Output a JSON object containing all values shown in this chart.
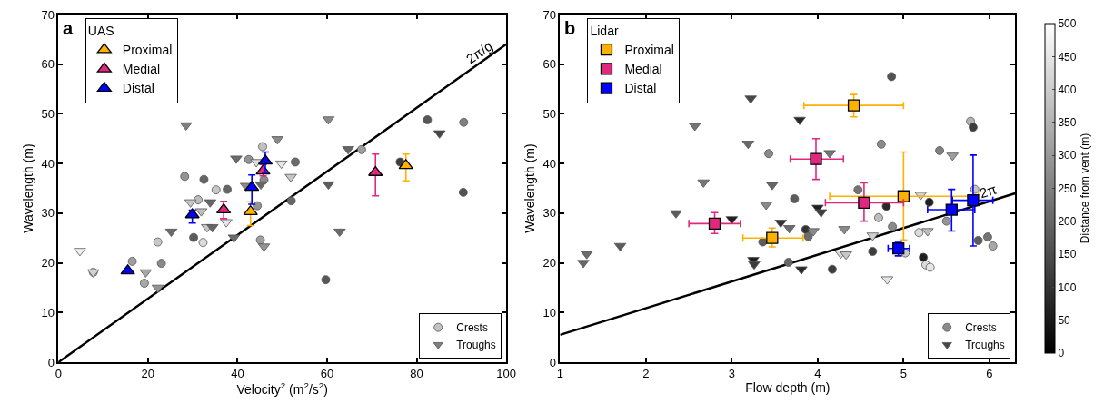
{
  "chart_data": [
    {
      "type": "scatter",
      "title": "a",
      "xlabel": "Velocity$^{2}$ (m$^{2}$/s$^{2}$)",
      "ylabel": "Wavelength (m)",
      "legend_title": "UAS",
      "xlim": [
        0,
        100
      ],
      "xticks": [
        0,
        20,
        40,
        60,
        80,
        100
      ],
      "ylim": [
        0,
        70
      ],
      "yticks": [
        0,
        10,
        20,
        30,
        40,
        50,
        60,
        70
      ],
      "legend": [
        "top left",
        "bottom right"
      ],
      "annotations": [
        "2π/g"
      ],
      "series": [
        {
          "type": "line",
          "color": "#000000",
          "line_style": "solid",
          "marker": "none",
          "x": [
            0,
            100
          ],
          "values": [
            0,
            64
          ]
        },
        {
          "name": "Crests",
          "marker": "circle",
          "x": [
            45.6,
            42.5,
            28.2,
            32.5,
            35.2,
            37.7,
            31.2,
            44.4,
            30.2,
            32.3,
            22.2,
            45.1,
            16.5,
            23.0,
            19.2,
            7.8,
            82.4,
            90.5,
            67.7,
            52.9,
            76.3,
            52.0,
            90.4,
            59.7,
            45.9
          ],
          "values": [
            43.4,
            40.8,
            37.4,
            36.8,
            34.7,
            34.8,
            32.7,
            31.5,
            25.1,
            24.1,
            24.2,
            24.6,
            20.3,
            19.9,
            15.9,
            18.1,
            48.8,
            48.3,
            42.8,
            40.3,
            40.3,
            32.5,
            34.2,
            16.6,
            36.7
          ],
          "colors": [
            "#c2c2c2",
            "#949494",
            "#949494",
            "#666666",
            "#c7c7c7",
            "#666666",
            "#bdbdbd",
            "#949494",
            "#5c5c5c",
            "#dbdbdb",
            "#c7c7c7",
            "#9e9e9e",
            "#9e9e9e",
            "#8a8a8a",
            "#a8a8a8",
            "#c7c7c7",
            "#575757",
            "#808080",
            "#9e9e9e",
            "#6b6b6b",
            "#3d3d3d",
            "#666666",
            "#525252",
            "#575757",
            "#8a8a8a"
          ]
        },
        {
          "name": "Troughs",
          "marker": "triangle-down",
          "x": [
            28.5,
            48.9,
            39.7,
            44.2,
            49.8,
            45.2,
            41.9,
            33.9,
            29.5,
            31.9,
            33.2,
            34.4,
            37.5,
            25.2,
            39.2,
            45.9,
            4.8,
            19.5,
            7.8,
            22.2,
            60.3,
            85.1,
            64.7,
            51.9,
            60.3,
            62.8
          ],
          "values": [
            47.7,
            44.9,
            41.0,
            40.3,
            40.0,
            35.8,
            35.5,
            32.2,
            32.2,
            30.4,
            27.2,
            27.2,
            28.2,
            26.3,
            25.1,
            23.3,
            22.4,
            18.1,
            18.1,
            15.0,
            48.9,
            46.1,
            42.9,
            37.3,
            35.8,
            26.3
          ],
          "colors": [
            "#808080",
            "#8a8a8a",
            "#6b6b6b",
            "#dbdbdb",
            "#e6e6e6",
            "#666666",
            "#8a8a8a",
            "#666666",
            "#c7c7c7",
            "#bdbdbd",
            "#c7c7c7",
            "#666666",
            "#e6e6e6",
            "#6b6b6b",
            "#6b6b6b",
            "#949494",
            "#f0f0f0",
            "#a8a8a8",
            "#d1d1d1",
            "#949494",
            "#8a8a8a",
            "#474747",
            "#666666",
            "#c7c7c7",
            "#5c5c5c",
            "#6b6b6b"
          ]
        },
        {
          "name": "Proximal",
          "color": "#ffb000",
          "marker": "triangle",
          "x": [
            42.9,
            77.6
          ],
          "values": [
            30.3,
            39.6
          ],
          "errors": [
            [
              27.5,
              32.3
            ],
            [
              36.5,
              41.9
            ]
          ]
        },
        {
          "name": "Medial",
          "color": "#e0297e",
          "marker": "triangle",
          "x": [
            36.9,
            45.7,
            70.8
          ],
          "values": [
            30.7,
            38.5,
            38.2
          ],
          "errors": [
            [
              28.9,
              32.4
            ],
            [
              37.5,
              39.8
            ],
            [
              33.5,
              41.9
            ]
          ]
        },
        {
          "name": "Distal",
          "color": "#0000ff",
          "marker": "triangle",
          "x": [
            15.5,
            29.9,
            43.2,
            46.2
          ],
          "values": [
            18.4,
            29.7,
            35.2,
            40.5
          ],
          "errors": [
            null,
            [
              28.0,
              30.6
            ],
            [
              31.8,
              37.7
            ],
            [
              38.2,
              42.3
            ]
          ]
        }
      ]
    },
    {
      "type": "scatter",
      "title": "b",
      "xlabel": "Flow depth (m)",
      "ylabel": "Wavelength (m)",
      "legend_title": "Lidar",
      "xlim": [
        1,
        6.3
      ],
      "xticks": [
        1,
        2,
        3,
        4,
        5,
        6
      ],
      "ylim": [
        0,
        70
      ],
      "yticks": [
        0,
        10,
        20,
        30,
        40,
        50,
        60,
        70
      ],
      "legend": [
        "top left",
        "bottom right"
      ],
      "clim": [
        0,
        500
      ],
      "cticks": [
        0,
        50,
        100,
        150,
        200,
        250,
        300,
        350,
        400,
        450,
        500
      ],
      "clabel": "Distance from vent (m)",
      "annotations": [
        "2π"
      ],
      "series": [
        {
          "type": "line",
          "color": "#000000",
          "line_style": "solid",
          "marker": "none",
          "x": [
            1,
            6.3
          ],
          "values": [
            5.5,
            34
          ]
        },
        {
          "name": "Crests",
          "marker": "circle",
          "x": [
            3.43,
            3.36,
            4.86,
            5.78,
            5.81,
            4.74,
            5.42,
            5.83,
            4.47,
            3.73,
            5.3,
            4.8,
            4.71,
            5.5,
            4.87,
            3.86,
            3.89,
            5.18,
            5.87,
            5.98,
            6.04,
            5.02,
            4.64,
            3.66,
            5.23,
            5.26,
            5.31,
            4.17
          ],
          "values": [
            42.0,
            24.2,
            57.5,
            48.5,
            47.3,
            43.9,
            42.6,
            34.8,
            34.7,
            32.9,
            32.2,
            31.4,
            29.1,
            28.4,
            27.3,
            26.7,
            25.3,
            26.1,
            24.5,
            25.2,
            23.4,
            22.0,
            22.3,
            20.1,
            21.1,
            19.6,
            19.1,
            18.7
          ],
          "colors": [
            "#8a8a8a",
            "#5c5c5c",
            "#525252",
            "#b3b3b3",
            "#3d3d3d",
            "#8a8a8a",
            "#808080",
            "#c7c7c7",
            "#757575",
            "#5c5c5c",
            "#1f1f1f",
            "#292929",
            "#bdbdbd",
            "#949494",
            "#8a8a8a",
            "#333333",
            "#6b6b6b",
            "#dbdbdb",
            "#5c5c5c",
            "#757575",
            "#a8a8a8",
            "#c7c7c7",
            "#3d3d3d",
            "#666666",
            "#1f1f1f",
            "#dbdbdb",
            "#e6e6e6",
            "#3d3d3d"
          ]
        },
        {
          "name": "Troughs",
          "marker": "triangle-down",
          "x": [
            3.22,
            2.57,
            3.19,
            2.67,
            3.47,
            3.4,
            2.35,
            3.0,
            3.57,
            1.7,
            1.31,
            1.27,
            3.25,
            3.26,
            3.79,
            4.14,
            5.57,
            5.2,
            4.0,
            4.04,
            3.67,
            3.95,
            4.31,
            4.64,
            5.28,
            4.27,
            4.33,
            3.81,
            4.81
          ],
          "values": [
            53.1,
            47.6,
            44.0,
            36.2,
            35.7,
            31.7,
            30.0,
            28.8,
            28.1,
            23.4,
            21.8,
            20.0,
            20.6,
            19.7,
            48.8,
            42.1,
            41.6,
            33.7,
            31.1,
            30.2,
            27.0,
            26.4,
            26.8,
            25.5,
            26.4,
            21.9,
            21.7,
            18.7,
            16.7
          ],
          "colors": [
            "#474747",
            "#757575",
            "#6b6b6b",
            "#757575",
            "#666666",
            "#8a8a8a",
            "#5c5c5c",
            "#1f1f1f",
            "#333333",
            "#5c5c5c",
            "#6b6b6b",
            "#666666",
            "#1f1f1f",
            "#3d3d3d",
            "#292929",
            "#757575",
            "#9e9e9e",
            "#d1d1d1",
            "#1f1f1f",
            "#3d3d3d",
            "#6b6b6b",
            "#8a8a8a",
            "#8a8a8a",
            "#d1d1d1",
            "#bdbdbd",
            "#dbdbdb",
            "#c7c7c7",
            "#292929",
            "#e6e6e6"
          ]
        },
        {
          "name": "Proximal",
          "color": "#ffb000",
          "marker": "square",
          "x": [
            4.42,
            5.0,
            3.47
          ],
          "values": [
            51.7,
            33.4,
            25.0
          ],
          "errors": [
            [
              49.4,
              53.9
            ],
            [
              24.6,
              42.3
            ],
            [
              23.2,
              27.0
            ]
          ],
          "xerrors": [
            [
              3.84,
              5.0
            ],
            [
              4.14,
              5.87
            ],
            [
              3.13,
              3.83
            ]
          ]
        },
        {
          "name": "Medial",
          "color": "#e0297e",
          "marker": "square",
          "x": [
            2.8,
            3.98,
            4.54
          ],
          "values": [
            27.9,
            40.9,
            32.1
          ],
          "errors": [
            [
              25.9,
              30.1
            ],
            [
              36.8,
              45.0
            ],
            [
              28.4,
              36.1
            ]
          ],
          "xerrors": [
            [
              2.5,
              3.1
            ],
            [
              3.68,
              4.3
            ],
            [
              4.09,
              5.0
            ]
          ]
        },
        {
          "name": "Distal",
          "color": "#0000ff",
          "marker": "square",
          "x": [
            4.94,
            5.56,
            5.81
          ],
          "values": [
            22.9,
            30.7,
            32.6
          ],
          "errors": [
            [
              21.4,
              24.1
            ],
            [
              26.4,
              34.8
            ],
            [
              23.4,
              41.7
            ]
          ],
          "xerrors": [
            [
              4.82,
              5.07
            ],
            [
              5.28,
              5.83
            ],
            [
              5.57,
              6.04
            ]
          ]
        }
      ]
    }
  ]
}
